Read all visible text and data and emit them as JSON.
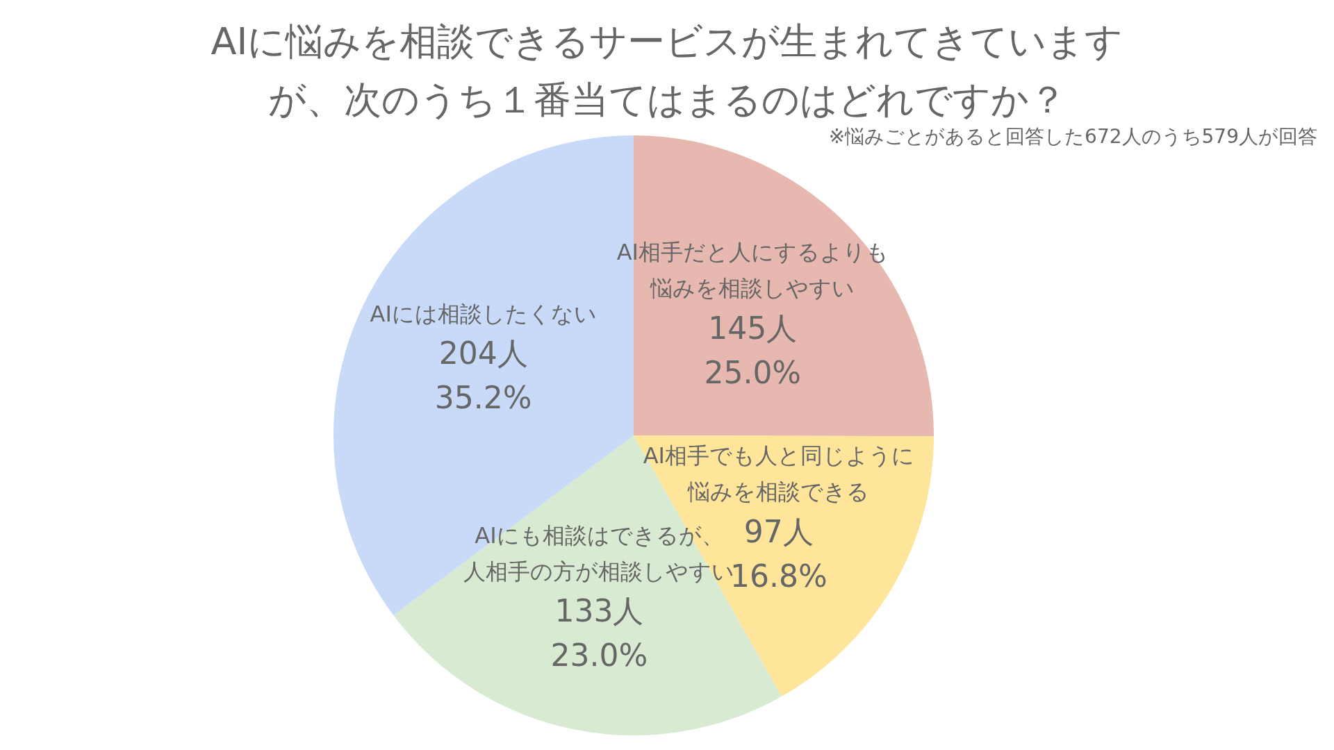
{
  "chart_data": {
    "type": "pie",
    "title": "AIに悩みを相談できるサービスが生まれてきていますが、次のうち１番当てはまるのはどれですか？",
    "annotations": [
      "※悩みごとがあると回答した672人のうち579人が回答"
    ],
    "categories": [
      "AI相手だと人にするよりも悩みを相談しやすい",
      "AI相手でも人と同じように悩みを相談できる",
      "AIにも相談はできるが、人相手の方が相談しやすい",
      "AIには相談したくない"
    ],
    "values": [
      145,
      97,
      133,
      204
    ],
    "value_labels": [
      "145人\n25.0%",
      "97人\n16.8%",
      "133人\n23.0%",
      "204人\n35.2%"
    ],
    "colors": [
      "#e6b8af",
      "#ffe599",
      "#d9ead3",
      "#c9daf8"
    ],
    "legend": false
  }
}
